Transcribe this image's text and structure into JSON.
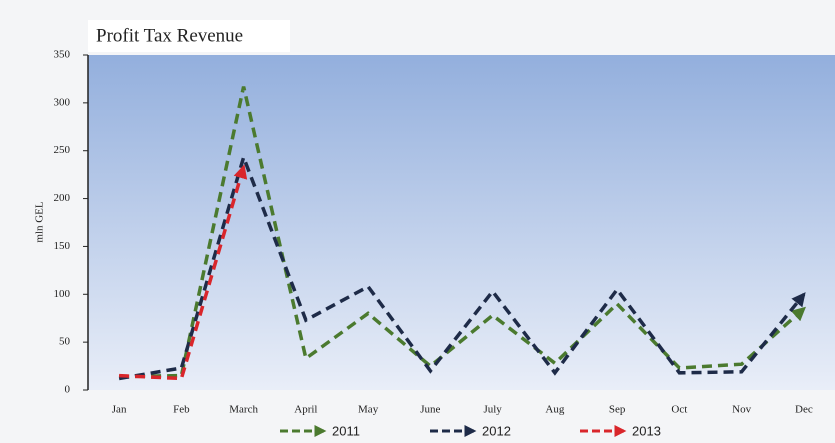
{
  "chart_data": {
    "type": "line",
    "title": "Profit Tax Revenue",
    "ylabel": "mln GEL",
    "categories": [
      "Jan",
      "Feb",
      "March",
      "April",
      "May",
      "June",
      "July",
      "Aug",
      "Sep",
      "Oct",
      "Nov",
      "Dec"
    ],
    "series": [
      {
        "name": "2011",
        "color": "#4b7a2f",
        "values": [
          14,
          15,
          317,
          33,
          80,
          25,
          78,
          28,
          90,
          23,
          27,
          85
        ]
      },
      {
        "name": "2012",
        "color": "#1e2b48",
        "values": [
          12,
          23,
          243,
          73,
          108,
          20,
          103,
          18,
          105,
          18,
          19,
          100
        ]
      },
      {
        "name": "2013",
        "color": "#d9262b",
        "values": [
          15,
          12,
          233,
          null,
          null,
          null,
          null,
          null,
          null,
          null,
          null,
          null
        ]
      }
    ],
    "ylim": [
      0,
      350
    ],
    "yticks": [
      0,
      50,
      100,
      150,
      200,
      250,
      300,
      350
    ]
  }
}
